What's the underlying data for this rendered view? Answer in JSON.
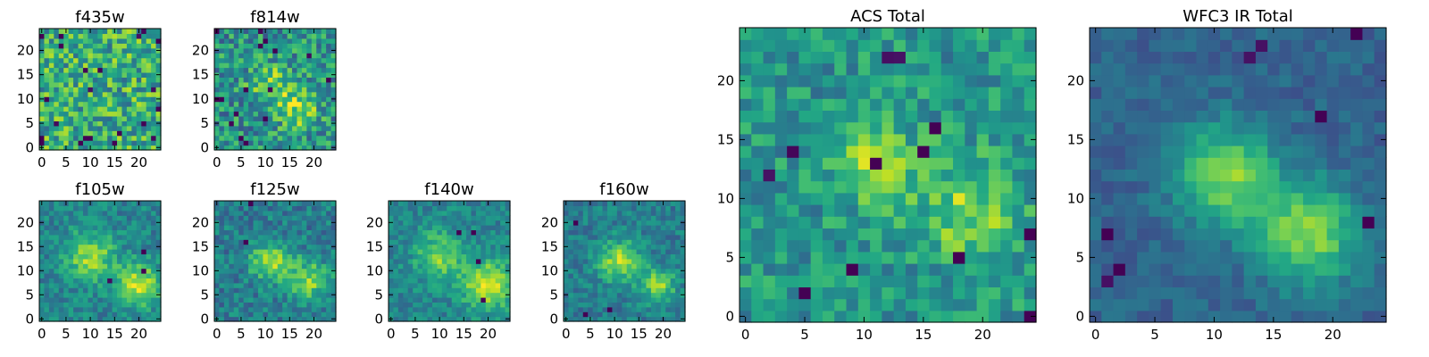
{
  "chart_data": [
    {
      "type": "heatmap",
      "title": "f435w",
      "colormap": "viridis",
      "grid": false,
      "x_range": [
        0,
        24
      ],
      "y_range": [
        0,
        24
      ],
      "xticks": [
        0,
        5,
        10,
        15,
        20
      ],
      "yticks": [
        0,
        5,
        10,
        15,
        20
      ],
      "xtick_labels": [
        "0",
        "5",
        "10",
        "15",
        "20"
      ],
      "ytick_labels": [
        "0",
        "5",
        "10",
        "15",
        "20"
      ],
      "blobs": [],
      "noise": 0.55,
      "base": 0.62,
      "dark_cells": 22
    },
    {
      "type": "heatmap",
      "title": "f814w",
      "colormap": "viridis",
      "grid": false,
      "x_range": [
        0,
        24
      ],
      "y_range": [
        0,
        24
      ],
      "xticks": [
        0,
        5,
        10,
        15,
        20
      ],
      "yticks": [
        0,
        5,
        10,
        15,
        20
      ],
      "xtick_labels": [
        "0",
        "5",
        "10",
        "15",
        "20"
      ],
      "ytick_labels": [
        "0",
        "5",
        "10",
        "15",
        "20"
      ],
      "blobs": [
        {
          "x": 11,
          "y": 13,
          "sigma": 3,
          "amp": 0.3
        },
        {
          "x": 17,
          "y": 8,
          "sigma": 3,
          "amp": 0.35
        }
      ],
      "noise": 0.5,
      "base": 0.5,
      "dark_cells": 16
    },
    {
      "type": "heatmap",
      "title": "f105w",
      "colormap": "viridis",
      "grid": false,
      "x_range": [
        0,
        24
      ],
      "y_range": [
        0,
        24
      ],
      "xticks": [
        0,
        5,
        10,
        15,
        20
      ],
      "yticks": [
        0,
        5,
        10,
        15,
        20
      ],
      "xtick_labels": [
        "0",
        "5",
        "10",
        "15",
        "20"
      ],
      "ytick_labels": [
        "0",
        "5",
        "10",
        "15",
        "20"
      ],
      "blobs": [
        {
          "x": 10,
          "y": 13,
          "sigma": 3.5,
          "amp": 0.4
        },
        {
          "x": 20,
          "y": 7,
          "sigma": 3,
          "amp": 0.5
        }
      ],
      "noise": 0.28,
      "base": 0.45,
      "dark_cells": 3
    },
    {
      "type": "heatmap",
      "title": "f125w",
      "colormap": "viridis",
      "grid": false,
      "x_range": [
        0,
        24
      ],
      "y_range": [
        0,
        24
      ],
      "xticks": [
        0,
        5,
        10,
        15,
        20
      ],
      "yticks": [
        0,
        5,
        10,
        15,
        20
      ],
      "xtick_labels": [
        "0",
        "5",
        "10",
        "15",
        "20"
      ],
      "ytick_labels": [
        "0",
        "5",
        "10",
        "15",
        "20"
      ],
      "blobs": [
        {
          "x": 11,
          "y": 12,
          "sigma": 3,
          "amp": 0.4
        },
        {
          "x": 19,
          "y": 8,
          "sigma": 3,
          "amp": 0.4
        }
      ],
      "noise": 0.32,
      "base": 0.42,
      "dark_cells": 2
    },
    {
      "type": "heatmap",
      "title": "f140w",
      "colormap": "viridis",
      "grid": false,
      "x_range": [
        0,
        24
      ],
      "y_range": [
        0,
        24
      ],
      "xticks": [
        0,
        5,
        10,
        15,
        20
      ],
      "yticks": [
        0,
        5,
        10,
        15,
        20
      ],
      "xtick_labels": [
        "0",
        "5",
        "10",
        "15",
        "20"
      ],
      "ytick_labels": [
        "0",
        "5",
        "10",
        "15",
        "20"
      ],
      "blobs": [
        {
          "x": 10,
          "y": 13,
          "sigma": 3.5,
          "amp": 0.35
        },
        {
          "x": 20,
          "y": 7,
          "sigma": 3.5,
          "amp": 0.5
        }
      ],
      "noise": 0.26,
      "base": 0.45,
      "dark_cells": 4
    },
    {
      "type": "heatmap",
      "title": "f160w",
      "colormap": "viridis",
      "grid": false,
      "x_range": [
        0,
        24
      ],
      "y_range": [
        0,
        24
      ],
      "xticks": [
        0,
        5,
        10,
        15,
        20
      ],
      "yticks": [
        0,
        5,
        10,
        15,
        20
      ],
      "xtick_labels": [
        "0",
        "5",
        "10",
        "15",
        "20"
      ],
      "ytick_labels": [
        "0",
        "5",
        "10",
        "15",
        "20"
      ],
      "blobs": [
        {
          "x": 11,
          "y": 12,
          "sigma": 3,
          "amp": 0.45
        },
        {
          "x": 19,
          "y": 7,
          "sigma": 2.5,
          "amp": 0.4
        }
      ],
      "noise": 0.26,
      "base": 0.42,
      "dark_cells": 3
    },
    {
      "type": "heatmap",
      "title": "ACS Total",
      "colormap": "viridis",
      "grid": false,
      "x_range": [
        0,
        24
      ],
      "y_range": [
        0,
        24
      ],
      "xticks": [
        0,
        5,
        10,
        15,
        20
      ],
      "yticks": [
        0,
        5,
        10,
        15,
        20
      ],
      "xtick_labels": [
        "0",
        "5",
        "10",
        "15",
        "20"
      ],
      "ytick_labels": [
        "0",
        "5",
        "10",
        "15",
        "20"
      ],
      "blobs": [
        {
          "x": 11,
          "y": 13,
          "sigma": 2.5,
          "amp": 0.3
        },
        {
          "x": 19,
          "y": 9,
          "sigma": 3,
          "amp": 0.3
        }
      ],
      "noise": 0.35,
      "base": 0.52,
      "dark_cells": 12
    },
    {
      "type": "heatmap",
      "title": "WFC3 IR Total",
      "colormap": "viridis",
      "grid": false,
      "x_range": [
        0,
        24
      ],
      "y_range": [
        0,
        24
      ],
      "xticks": [
        0,
        5,
        10,
        15,
        20
      ],
      "yticks": [
        0,
        5,
        10,
        15,
        20
      ],
      "xtick_labels": [
        "0",
        "5",
        "10",
        "15",
        "20"
      ],
      "ytick_labels": [
        "0",
        "5",
        "10",
        "15",
        "20"
      ],
      "blobs": [
        {
          "x": 11,
          "y": 12,
          "sigma": 3,
          "amp": 0.5
        },
        {
          "x": 18,
          "y": 7,
          "sigma": 3,
          "amp": 0.5
        }
      ],
      "noise": 0.16,
      "base": 0.32,
      "dark_cells": 8
    }
  ]
}
